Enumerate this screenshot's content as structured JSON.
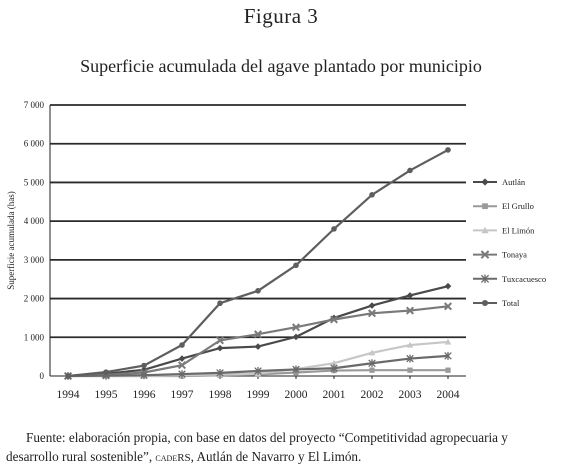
{
  "figure": {
    "label": "Figura 3",
    "source_part1": "Fuente: elaboración propia, con base en datos del proyecto “Competitividad agropecuaria y desarrollo rural sostenible”,",
    "source_caps": "cadeRS",
    "source_part2": ", Autlán de Navarro y El Limón."
  },
  "chart_data": {
    "type": "line",
    "title": "Superficie acumulada del agave plantado por municipio",
    "xlabel": "",
    "ylabel": "Superficie acumulada (has)",
    "x": [
      "1994",
      "1995",
      "1996",
      "1997",
      "1998",
      "1999",
      "2000",
      "2001",
      "2002",
      "2003",
      "2004"
    ],
    "ylim": [
      0,
      7000
    ],
    "yticks": [
      0,
      1000,
      2000,
      3000,
      4000,
      5000,
      6000,
      7000
    ],
    "ytick_labels": [
      "0",
      "1 000",
      "2 000",
      "3 000",
      "4 000",
      "5 000",
      "6 000",
      "7 000"
    ],
    "grid": true,
    "legend": "right",
    "series": [
      {
        "name": "Autlán",
        "color": "#4a4a4a",
        "marker": "diamond",
        "values": [
          0,
          60,
          160,
          450,
          720,
          760,
          1010,
          1500,
          1820,
          2080,
          2320
        ]
      },
      {
        "name": "El Grullo",
        "color": "#9a9a9a",
        "marker": "square",
        "values": [
          0,
          0,
          0,
          0,
          20,
          40,
          90,
          140,
          150,
          150,
          150
        ]
      },
      {
        "name": "El Limón",
        "color": "#c6c6c6",
        "marker": "triangle",
        "values": [
          0,
          0,
          0,
          20,
          40,
          60,
          180,
          330,
          600,
          800,
          880
        ]
      },
      {
        "name": "Tonaya",
        "color": "#7a7a7a",
        "marker": "x",
        "values": [
          0,
          30,
          90,
          280,
          920,
          1080,
          1260,
          1460,
          1620,
          1690,
          1800
        ]
      },
      {
        "name": "Tuxcacuesco",
        "color": "#6a6a6a",
        "marker": "star",
        "values": [
          0,
          10,
          20,
          50,
          80,
          130,
          170,
          200,
          330,
          450,
          520
        ]
      },
      {
        "name": "Total",
        "color": "#5e5e5e",
        "marker": "circle",
        "values": [
          0,
          100,
          270,
          800,
          1880,
          2200,
          2860,
          3800,
          4680,
          5310,
          5840
        ]
      }
    ]
  }
}
